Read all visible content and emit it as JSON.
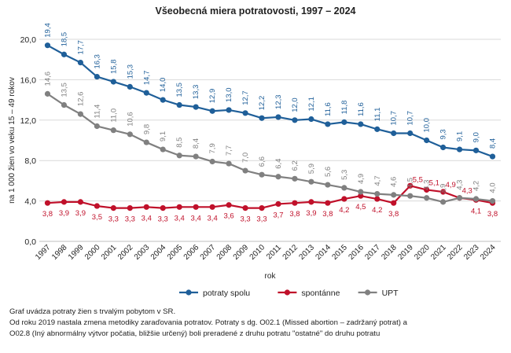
{
  "chart_data": {
    "type": "line",
    "title": "Všeobecná miera potratovosti, 1997 – 2024",
    "xlabel": "rok",
    "ylabel": "na 1 000 žien vo veku 15 – 49 rokov",
    "ylim": [
      0,
      20
    ],
    "yticks": [
      "0,0",
      "4,0",
      "8,0",
      "12,0",
      "16,0",
      "20,0"
    ],
    "grid": true,
    "legend_position": "bottom",
    "categories": [
      "1997",
      "1998",
      "1999",
      "2000",
      "2001",
      "2002",
      "2003",
      "2004",
      "2005",
      "2006",
      "2007",
      "2008",
      "2009",
      "2010",
      "2011",
      "2012",
      "2013",
      "2014",
      "2015",
      "2016",
      "2017",
      "2018",
      "2019",
      "2020",
      "2021",
      "2022",
      "2023",
      "2024"
    ],
    "series": [
      {
        "name": "potraty spolu",
        "color": "#1f5f99",
        "values": [
          19.4,
          18.5,
          17.7,
          16.3,
          15.8,
          15.3,
          14.7,
          14.0,
          13.5,
          13.3,
          12.9,
          13.0,
          12.7,
          12.2,
          12.3,
          12.0,
          12.1,
          11.6,
          11.8,
          11.6,
          11.1,
          10.7,
          10.7,
          10.0,
          9.3,
          9.1,
          9.0,
          8.4
        ],
        "labels": [
          "19,4",
          "18,5",
          "17,7",
          "16,3",
          "15,8",
          "15,3",
          "14,7",
          "14,0",
          "13,5",
          "13,3",
          "12,9",
          "13,0",
          "12,7",
          "12,2",
          "12,3",
          "12,0",
          "12,1",
          "11,6",
          "11,8",
          "11,6",
          "11,1",
          "10,7",
          "10,7",
          "10,0",
          "9,3",
          "9,1",
          "9,0",
          "8,4"
        ]
      },
      {
        "name": "spontánne",
        "color": "#c0102a",
        "values": [
          3.8,
          3.9,
          3.9,
          3.5,
          3.3,
          3.3,
          3.4,
          3.3,
          3.4,
          3.4,
          3.4,
          3.6,
          3.3,
          3.3,
          3.7,
          3.8,
          3.9,
          3.8,
          4.2,
          4.5,
          4.2,
          3.8,
          5.5,
          5.1,
          4.9,
          4.3,
          4.1,
          3.8
        ],
        "labels": [
          "3,8",
          "3,9",
          "3,9",
          "3,5",
          "3,3",
          "3,3",
          "3,4",
          "3,3",
          "3,4",
          "3,4",
          "3,4",
          "3,6",
          "3,3",
          "3,3",
          "3,7",
          "3,8",
          "3,9",
          "3,8",
          "4,2",
          "4,5",
          "4,2",
          "3,8",
          "5,5",
          "5,1",
          "4,9",
          "4,3",
          "4,1",
          "3,8"
        ]
      },
      {
        "name": "UPT",
        "color": "#808080",
        "values": [
          14.6,
          13.5,
          12.6,
          11.4,
          11.0,
          10.6,
          9.8,
          9.1,
          8.5,
          8.4,
          7.9,
          7.7,
          7.0,
          6.6,
          6.4,
          6.2,
          5.9,
          5.6,
          5.3,
          4.9,
          4.7,
          4.6,
          4.5,
          4.3,
          3.9,
          4.3,
          4.2,
          4.0
        ],
        "labels": [
          "14,6",
          "13,5",
          "12,6",
          "11,4",
          "11,0",
          "10,6",
          "9,8",
          "9,1",
          "8,5",
          "8,4",
          "7,9",
          "7,7",
          "7,0",
          "6,6",
          "6,4",
          "6,2",
          "5,9",
          "5,6",
          "5,3",
          "4,9",
          "4,7",
          "4,6",
          "4,5",
          "4,3",
          "3,9",
          "4,3",
          "4,2",
          "4,0"
        ]
      }
    ]
  },
  "notes": [
    "Graf uvádza potraty žien s trvalým pobytom v SR.",
    "Od roku 2019 nastala zmena metodiky zaraďovania potratov.  Potraty s dg. O02.1 (Missed abortion – zadržaný potrat) a",
    "O02.8 (Iný abnormálny výtvor počatia, bližšie určený) boli preradené z druhu potratu \"ostatné\" do druhu potratu"
  ]
}
